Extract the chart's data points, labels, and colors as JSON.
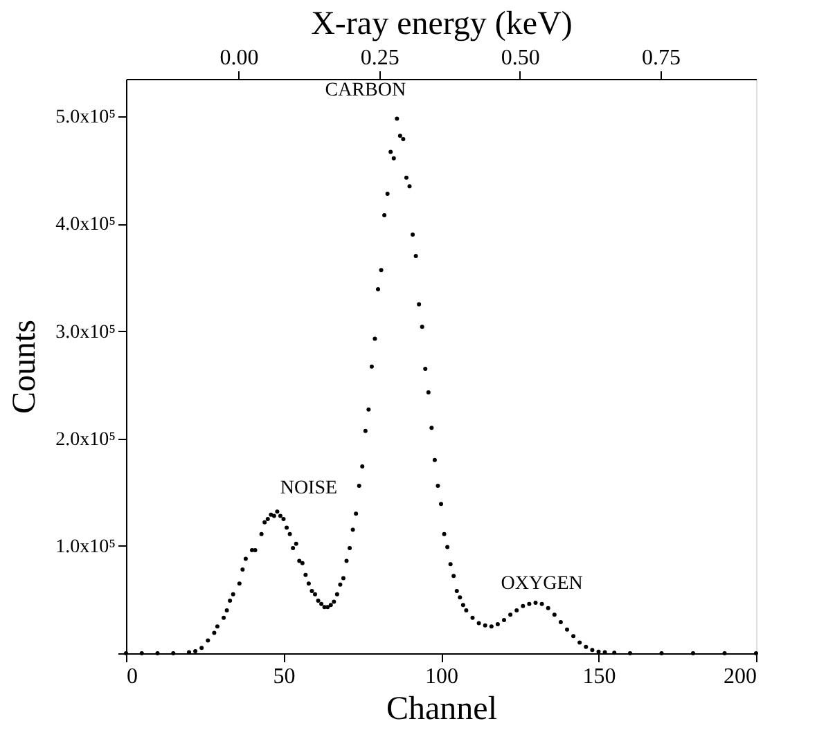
{
  "chart_data": {
    "type": "scatter",
    "xlabel": "Channel",
    "ylabel": "Counts",
    "x2label": "X-ray energy (keV)",
    "x": [
      0,
      5,
      10,
      15,
      20,
      22,
      24,
      26,
      28,
      29,
      31,
      32,
      33,
      34,
      36,
      37,
      38,
      40,
      41,
      43,
      44,
      45,
      46,
      47,
      48,
      49,
      50,
      51,
      52,
      53,
      54,
      55,
      56,
      57,
      58,
      59,
      60,
      61,
      62,
      63,
      64,
      65,
      66,
      67,
      68,
      69,
      70,
      71,
      72,
      73,
      74,
      75,
      76,
      77,
      78,
      79,
      80,
      81,
      82,
      83,
      84,
      85,
      86,
      87,
      88,
      89,
      90,
      91,
      92,
      93,
      94,
      95,
      96,
      97,
      98,
      99,
      100,
      101,
      102,
      103,
      104,
      105,
      106,
      107,
      108,
      110,
      112,
      114,
      116,
      118,
      120,
      122,
      124,
      126,
      128,
      130,
      132,
      134,
      136,
      138,
      140,
      142,
      144,
      146,
      148,
      150,
      152,
      155,
      160,
      170,
      180,
      190,
      200
    ],
    "series": [
      {
        "color": "#000000",
        "values": [
          0,
          0,
          0,
          0,
          1000,
          2000,
          5000,
          12000,
          19000,
          25000,
          33000,
          40000,
          49000,
          55000,
          65000,
          78000,
          88000,
          96000,
          96000,
          111000,
          122000,
          125000,
          129000,
          128000,
          132000,
          128000,
          125000,
          117000,
          111000,
          98000,
          102000,
          86000,
          84000,
          73000,
          65000,
          58000,
          55000,
          49000,
          46000,
          43000,
          43000,
          45000,
          48000,
          55000,
          64000,
          70000,
          86000,
          98000,
          115000,
          130000,
          156000,
          174000,
          207000,
          227000,
          267000,
          293000,
          339000,
          357000,
          408000,
          428000,
          467000,
          461000,
          498000,
          482000,
          479000,
          443000,
          435000,
          390000,
          370000,
          325000,
          304000,
          265000,
          243000,
          210000,
          180000,
          156000,
          139000,
          111000,
          99000,
          83000,
          72000,
          58000,
          52000,
          45000,
          40000,
          33000,
          28000,
          26000,
          25000,
          27000,
          31000,
          36000,
          40000,
          44000,
          46000,
          47000,
          46000,
          42000,
          36000,
          29000,
          22000,
          16000,
          10000,
          6000,
          3000,
          1500,
          1000,
          500,
          0,
          0,
          0,
          0,
          0
        ]
      }
    ],
    "xlim": [
      0,
      200
    ],
    "xticks": [
      0,
      50,
      100,
      150,
      200
    ],
    "ylim": [
      0,
      535000
    ],
    "yticks": [
      {
        "value": 0,
        "label": null
      },
      {
        "value": 100000,
        "label": "1.0x10⁵"
      },
      {
        "value": 200000,
        "label": "2.0x10⁵"
      },
      {
        "value": 300000,
        "label": "3.0x10⁵"
      },
      {
        "value": 400000,
        "label": "4.0x10⁵"
      },
      {
        "value": 500000,
        "label": "5.0x10⁵"
      }
    ],
    "x2lim": [
      -0.2,
      0.92
    ],
    "x2ticks": [
      {
        "value": 0,
        "label": "0.00"
      },
      {
        "value": 0.25,
        "label": "0.25"
      },
      {
        "value": 0.5,
        "label": "0.50"
      },
      {
        "value": 0.75,
        "label": "0.75"
      }
    ],
    "annotations": [
      "NOISE",
      "CARBON",
      "OXYGEN"
    ],
    "marker": "circle",
    "grid": false
  }
}
